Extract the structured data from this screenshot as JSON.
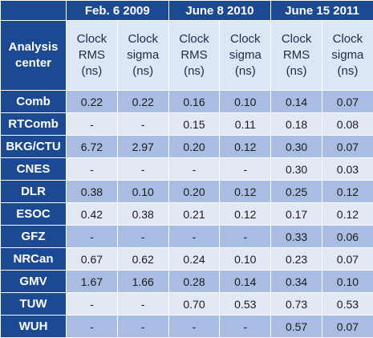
{
  "header": {
    "row_label": [
      "Analysis",
      "center"
    ],
    "dates": [
      "Feb. 6 2009",
      "June 8 2010",
      "June 15 2011"
    ],
    "columns": [
      [
        "Clock",
        "RMS",
        "(ns)"
      ],
      [
        "Clock",
        "sigma",
        "(ns)"
      ],
      [
        "Clock",
        "RMS",
        "(ns)"
      ],
      [
        "Clock",
        "sigma",
        "(ns)"
      ],
      [
        "Clock",
        "RMS",
        "(ns)"
      ],
      [
        "Clock",
        "sigma",
        "(ns)"
      ]
    ]
  },
  "rows": [
    {
      "center": "Comb",
      "values": [
        "0.22",
        "0.22",
        "0.16",
        "0.10",
        "0.14",
        "0.07"
      ]
    },
    {
      "center": "RTComb",
      "values": [
        "-",
        "-",
        "0.15",
        "0.11",
        "0.18",
        "0.08"
      ]
    },
    {
      "center": "BKG/CTU",
      "values": [
        "6.72",
        "2.97",
        "0.20",
        "0.12",
        "0.30",
        "0.07"
      ]
    },
    {
      "center": "CNES",
      "values": [
        "-",
        "-",
        "-",
        "-",
        "0.30",
        "0.03"
      ]
    },
    {
      "center": "DLR",
      "values": [
        "0.38",
        "0.10",
        "0.20",
        "0.12",
        "0.25",
        "0.12"
      ]
    },
    {
      "center": "ESOC",
      "values": [
        "0.42",
        "0.38",
        "0.21",
        "0.12",
        "0.17",
        "0.12"
      ]
    },
    {
      "center": "GFZ",
      "values": [
        "-",
        "-",
        "-",
        "-",
        "0.33",
        "0.06"
      ]
    },
    {
      "center": "NRCan",
      "values": [
        "0.67",
        "0.62",
        "0.24",
        "0.10",
        "0.23",
        "0.07"
      ]
    },
    {
      "center": "GMV",
      "values": [
        "1.67",
        "1.66",
        "0.28",
        "0.14",
        "0.34",
        "0.10"
      ]
    },
    {
      "center": "TUW",
      "values": [
        "-",
        "-",
        "0.70",
        "0.53",
        "0.73",
        "0.53"
      ]
    },
    {
      "center": "WUH",
      "values": [
        "-",
        "-",
        "-",
        "-",
        "0.57",
        "0.07"
      ]
    }
  ],
  "colors": {
    "header_blue": "#1b4a92",
    "row_dark": "#a9bde2",
    "row_light": "#e2e9f5",
    "subheader_bg": "#dce6f4"
  }
}
